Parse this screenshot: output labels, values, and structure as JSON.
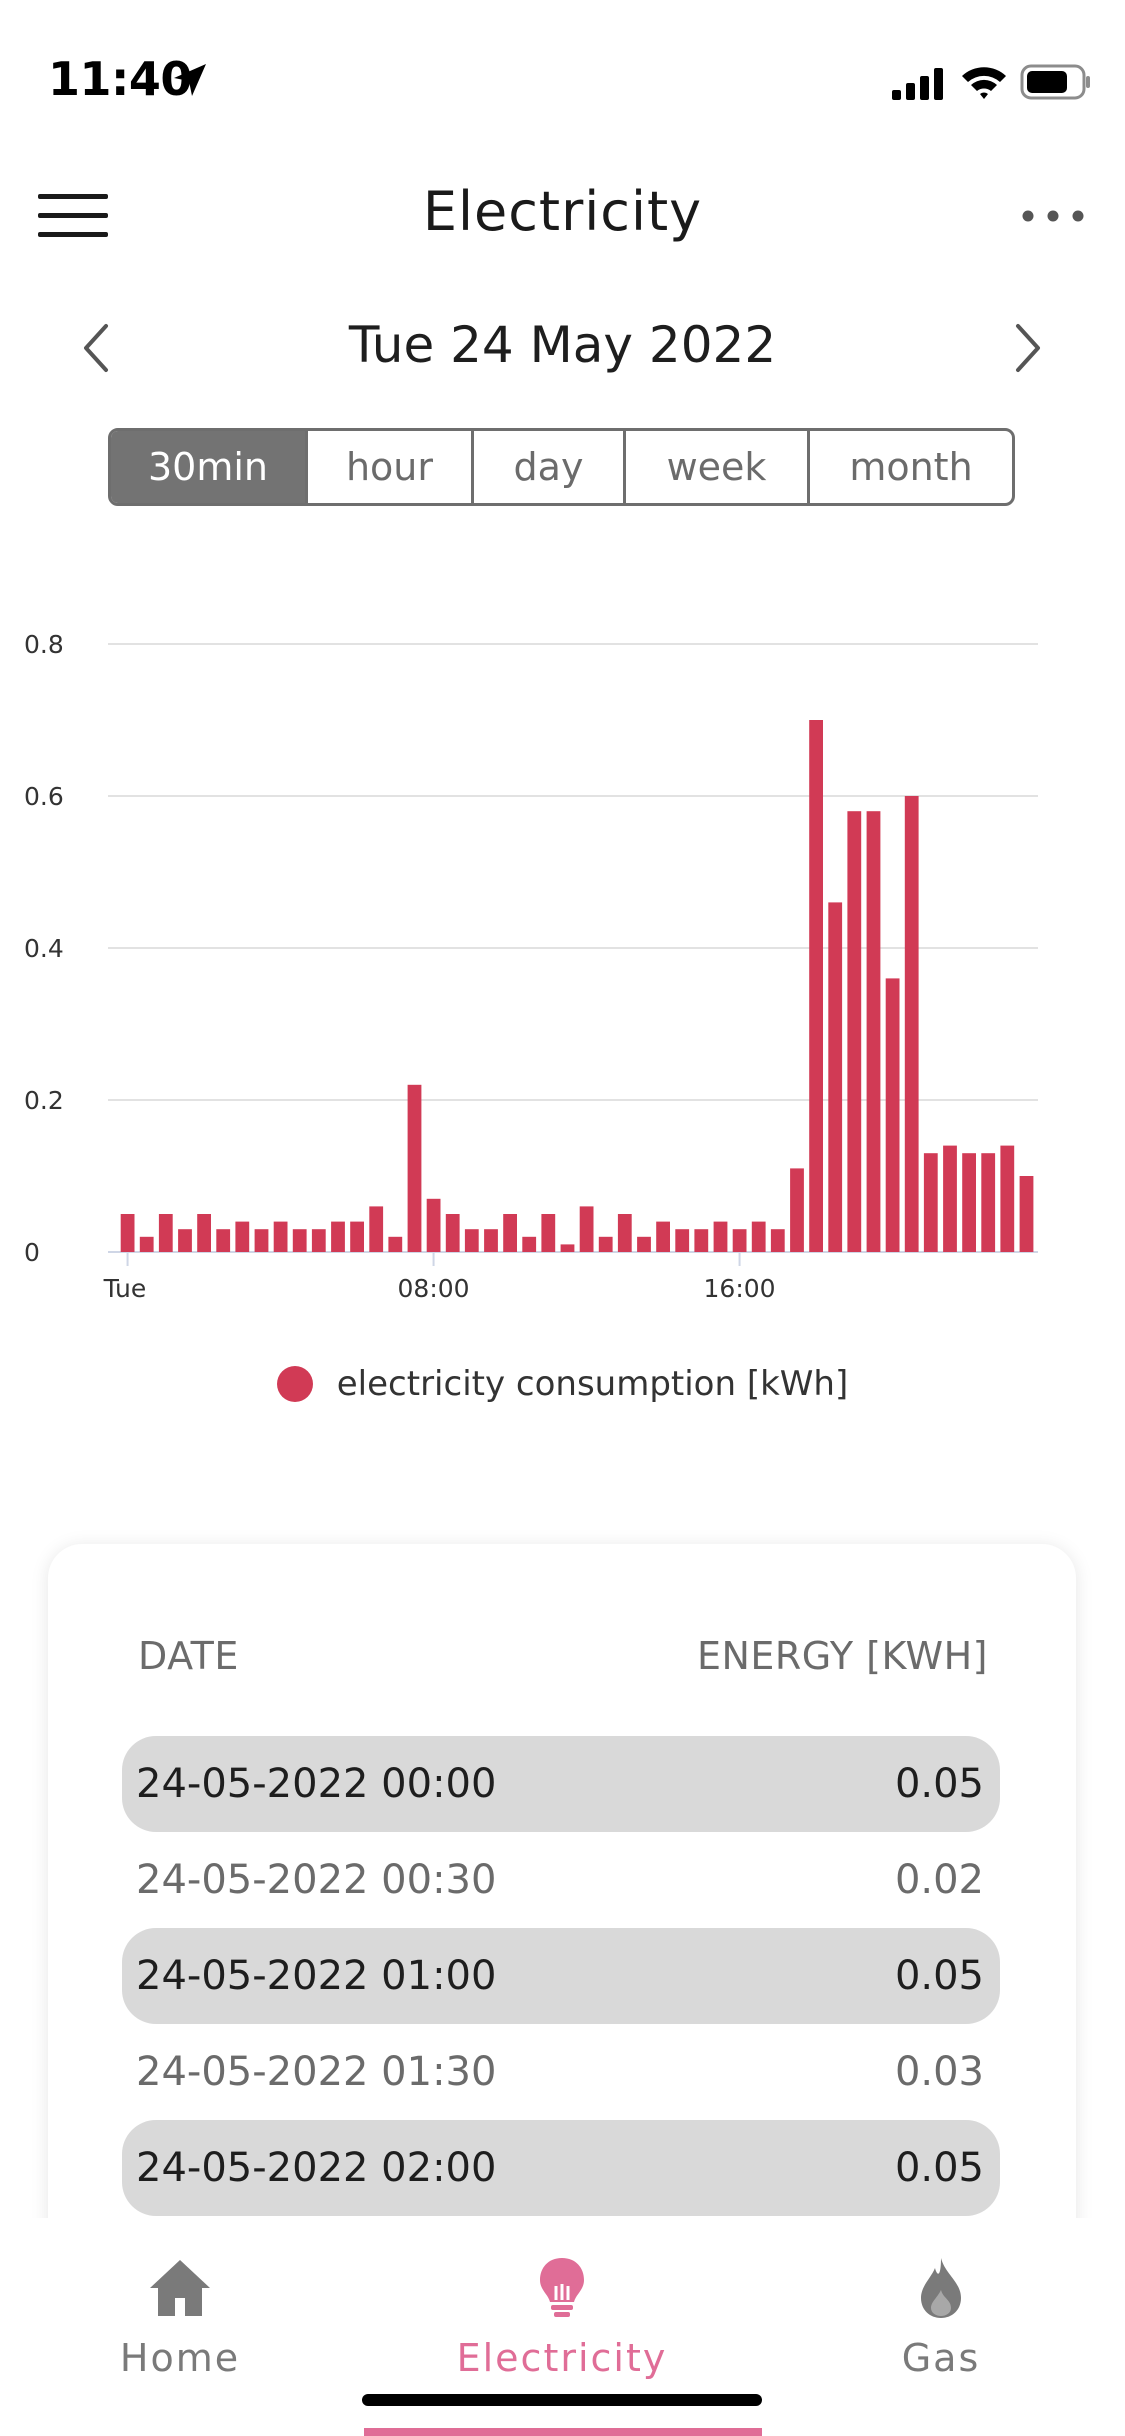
{
  "status_bar": {
    "time": "11:40",
    "icons": [
      "location-arrow-icon",
      "signal-icon",
      "wifi-icon",
      "battery-icon"
    ]
  },
  "header": {
    "title": "Electricity",
    "menu_icon": "hamburger-menu-icon",
    "more_icon": "more-dots-icon"
  },
  "date_nav": {
    "label": "Tue 24 May 2022",
    "prev_icon": "chevron-left-icon",
    "next_icon": "chevron-right-icon"
  },
  "segments": {
    "options": [
      "30min",
      "hour",
      "day",
      "week",
      "month"
    ],
    "selected": "30min"
  },
  "chart_data": {
    "type": "bar",
    "y_ticks": [
      "0.8",
      "0.6",
      "0.4",
      "0.2",
      "0"
    ],
    "x_ticks": [
      "Tue",
      "08:00",
      "16:00"
    ],
    "ylim": [
      0,
      0.8
    ],
    "grid": true,
    "legend_position": "bottom-center",
    "color": "#d13a55",
    "series": [
      {
        "name": "electricity consumption [kWh]",
        "values": [
          0.05,
          0.02,
          0.05,
          0.03,
          0.05,
          0.03,
          0.04,
          0.03,
          0.04,
          0.03,
          0.03,
          0.04,
          0.04,
          0.06,
          0.02,
          0.22,
          0.07,
          0.05,
          0.03,
          0.03,
          0.05,
          0.02,
          0.05,
          0.01,
          0.06,
          0.02,
          0.05,
          0.02,
          0.04,
          0.03,
          0.03,
          0.04,
          0.03,
          0.04,
          0.03,
          0.11,
          0.7,
          0.46,
          0.58,
          0.58,
          0.36,
          0.6,
          0.13,
          0.14,
          0.13,
          0.13,
          0.14,
          0.1
        ]
      }
    ]
  },
  "legend": {
    "label": "electricity consumption [kWh]"
  },
  "table": {
    "columns": [
      "DATE",
      "ENERGY [KWH]"
    ],
    "rows": [
      {
        "date": "24-05-2022 00:00",
        "energy": "0.05"
      },
      {
        "date": "24-05-2022 00:30",
        "energy": "0.02"
      },
      {
        "date": "24-05-2022 01:00",
        "energy": "0.05"
      },
      {
        "date": "24-05-2022 01:30",
        "energy": "0.03"
      },
      {
        "date": "24-05-2022 02:00",
        "energy": "0.05"
      }
    ]
  },
  "tabbar": {
    "tabs": [
      {
        "label": "Home",
        "icon": "home-icon"
      },
      {
        "label": "Electricity",
        "icon": "lightbulb-icon"
      },
      {
        "label": "Gas",
        "icon": "flame-icon"
      }
    ],
    "active": "Electricity",
    "active_color": "#e06d97"
  }
}
